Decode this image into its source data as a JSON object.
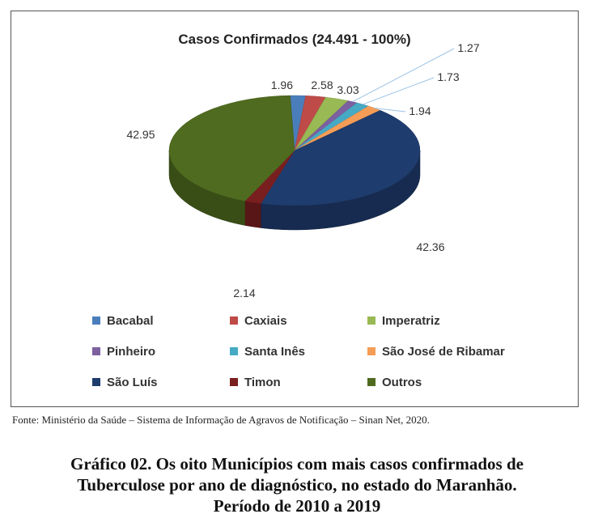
{
  "chart_data": {
    "type": "pie",
    "title": "Casos Confirmados (24.491 - 100%)",
    "categories": [
      "Bacabal",
      "Caxiais",
      "Imperatriz",
      "Pinheiro",
      "Santa Inês",
      "São José de Ribamar",
      "São Luís",
      "Timon",
      "Outros"
    ],
    "values": [
      1.96,
      2.58,
      3.03,
      1.27,
      1.73,
      1.94,
      42.36,
      2.14,
      42.95
    ],
    "data_labels": [
      "1.96",
      "2.58",
      "3.03",
      "1.27",
      "1.73",
      "1.94",
      "42.36",
      "2.14",
      "42.95"
    ],
    "colors": [
      "#4a7ebb",
      "#be4b48",
      "#98b954",
      "#7d60a0",
      "#46aac5",
      "#f59d56",
      "#1f3c6e",
      "#7a1f1f",
      "#4f6b1f"
    ],
    "legend_position": "bottom",
    "style": "3d-pie"
  },
  "source_text": "Fonte: Ministério da Saúde – Sistema de Informação de Agravos de Notificação – Sinan Net, 2020.",
  "caption_lines": [
    "Gráfico 02. Os oito Municípios com mais casos confirmados de",
    "Tuberculose por ano de diagnóstico, no estado do Maranhão.",
    "Período de 2010 a 2019"
  ]
}
